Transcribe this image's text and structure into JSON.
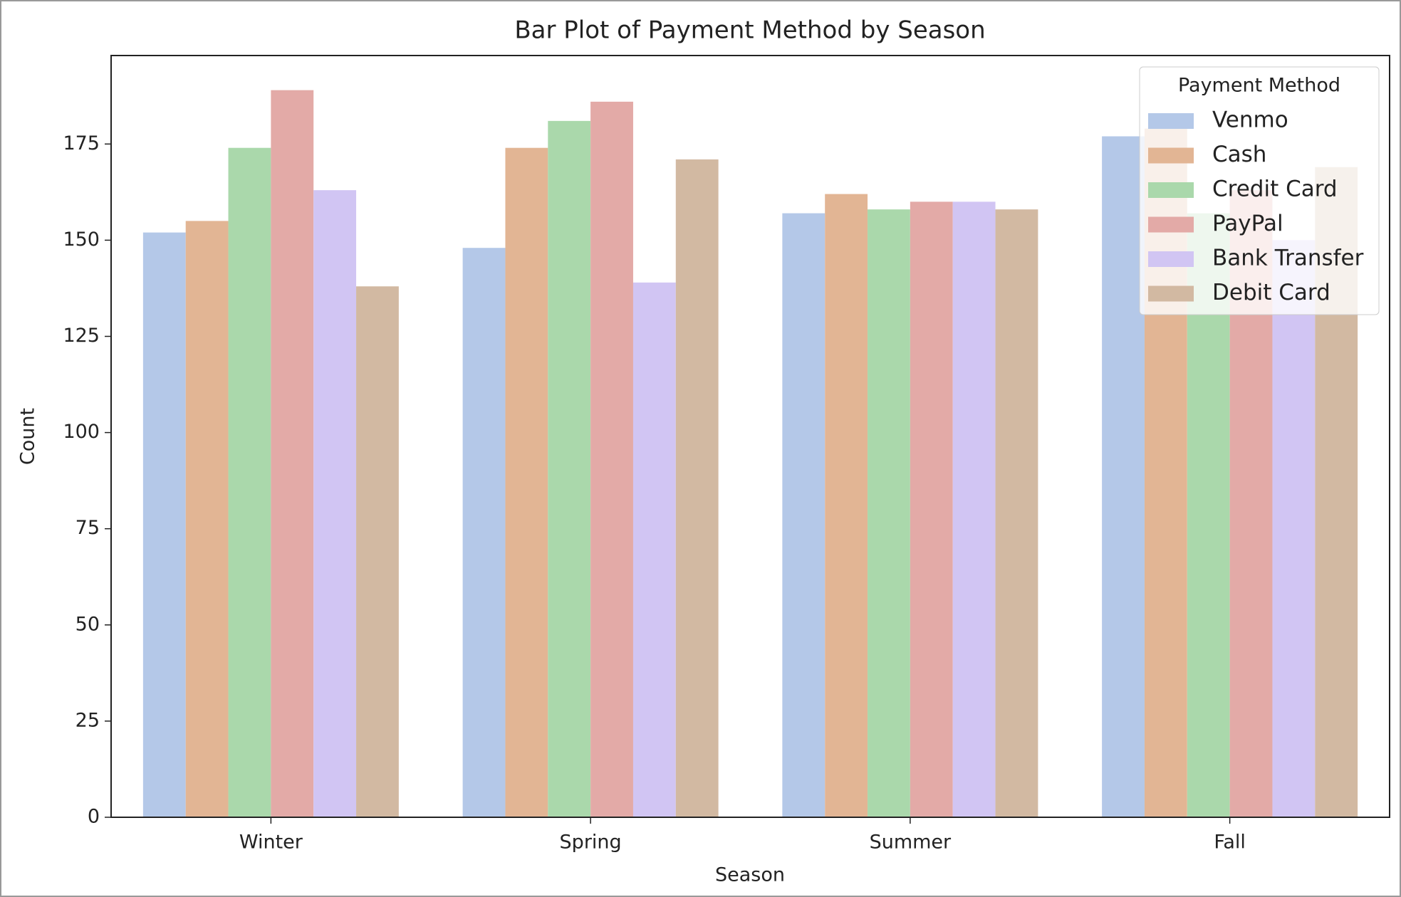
{
  "chart_data": {
    "type": "bar",
    "title": "Bar Plot of Payment Method by Season",
    "x_label": "Season",
    "y_label": "Count",
    "categories": [
      "Winter",
      "Spring",
      "Summer",
      "Fall"
    ],
    "series": [
      {
        "name": "Venmo",
        "color": "#b4c8e8",
        "values": [
          152,
          148,
          157,
          177
        ]
      },
      {
        "name": "Cash",
        "color": "#e2b594",
        "values": [
          155,
          174,
          162,
          179
        ]
      },
      {
        "name": "Credit Card",
        "color": "#aad8ab",
        "values": [
          174,
          181,
          158,
          157
        ]
      },
      {
        "name": "PayPal",
        "color": "#e3aaa7",
        "values": [
          189,
          186,
          160,
          163
        ]
      },
      {
        "name": "Bank Transfer",
        "color": "#d1c5f3",
        "values": [
          163,
          139,
          160,
          150
        ]
      },
      {
        "name": "Debit Card",
        "color": "#d2b9a2",
        "values": [
          138,
          171,
          158,
          169
        ]
      }
    ],
    "legend_title": "Payment Method",
    "legend": "upper right",
    "ylim": [
      0,
      198
    ],
    "yticks": [
      0,
      25,
      50,
      75,
      100,
      125,
      150,
      175
    ]
  }
}
